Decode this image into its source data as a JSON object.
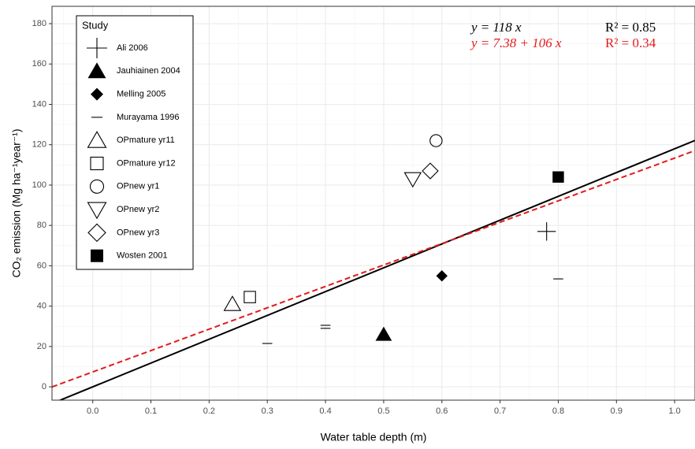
{
  "chart_data": {
    "type": "scatter",
    "x_label": "Water table depth (m)",
    "y_label": "CO₂ emission (Mg ha⁻¹year⁻¹)",
    "xlim": [
      -0.07,
      1.035
    ],
    "ylim": [
      -6.6,
      188.6
    ],
    "xticks": [
      {
        "value": 0,
        "label": "0.0"
      },
      0.1,
      0.2,
      0.3,
      0.4,
      0.5,
      0.6,
      0.7,
      0.8,
      0.9,
      {
        "value": 1,
        "label": "1.0"
      }
    ],
    "yticks": [
      0,
      20,
      40,
      60,
      80,
      100,
      120,
      140,
      160,
      180
    ],
    "grid": true,
    "legend_title": "Study",
    "legend_position": "top-left",
    "series": [
      {
        "name": "Ali 2006",
        "marker": "plus",
        "color": "#000000",
        "x": [
          0.78
        ],
        "y": [
          77
        ]
      },
      {
        "name": "Jauhiainen 2004",
        "marker": "triangle-filled",
        "color": "#000000",
        "x": [
          0.5
        ],
        "y": [
          26
        ]
      },
      {
        "name": "Melling 2005",
        "marker": "diamond-filled",
        "color": "#000000",
        "x": [
          0.6
        ],
        "y": [
          55
        ]
      },
      {
        "name": "Murayama 1996",
        "marker": "dash",
        "color": "#000000",
        "x": [
          0.3,
          0.4,
          0.4,
          0.8
        ],
        "y": [
          21.5,
          29,
          30.5,
          53.5
        ]
      },
      {
        "name": "OPmature yr11",
        "marker": "triangle-open",
        "color": "#000000",
        "x": [
          0.24
        ],
        "y": [
          41
        ]
      },
      {
        "name": "OPmature yr12",
        "marker": "square-open",
        "color": "#000000",
        "x": [
          0.27
        ],
        "y": [
          44.5
        ]
      },
      {
        "name": "OPnew yr1",
        "marker": "circle-open",
        "color": "#000000",
        "x": [
          0.59
        ],
        "y": [
          122
        ]
      },
      {
        "name": "OPnew yr2",
        "marker": "triangle-down-open",
        "color": "#000000",
        "x": [
          0.55
        ],
        "y": [
          103
        ]
      },
      {
        "name": "OPnew yr3",
        "marker": "diamond-open",
        "color": "#000000",
        "x": [
          0.58
        ],
        "y": [
          107
        ]
      },
      {
        "name": "Wosten 2001",
        "marker": "square-filled",
        "color": "#000000",
        "x": [
          0.8
        ],
        "y": [
          104
        ]
      }
    ],
    "fits": [
      {
        "intercept": 0,
        "slope": 118,
        "color": "#000000",
        "dashed": false,
        "equation": "y = 118 x",
        "r2": "R² = 0.85"
      },
      {
        "intercept": 7.38,
        "slope": 106,
        "color": "#e41a1c",
        "dashed": true,
        "equation": "y = 7.38 + 106 x",
        "r2": "R² = 0.34"
      }
    ]
  }
}
